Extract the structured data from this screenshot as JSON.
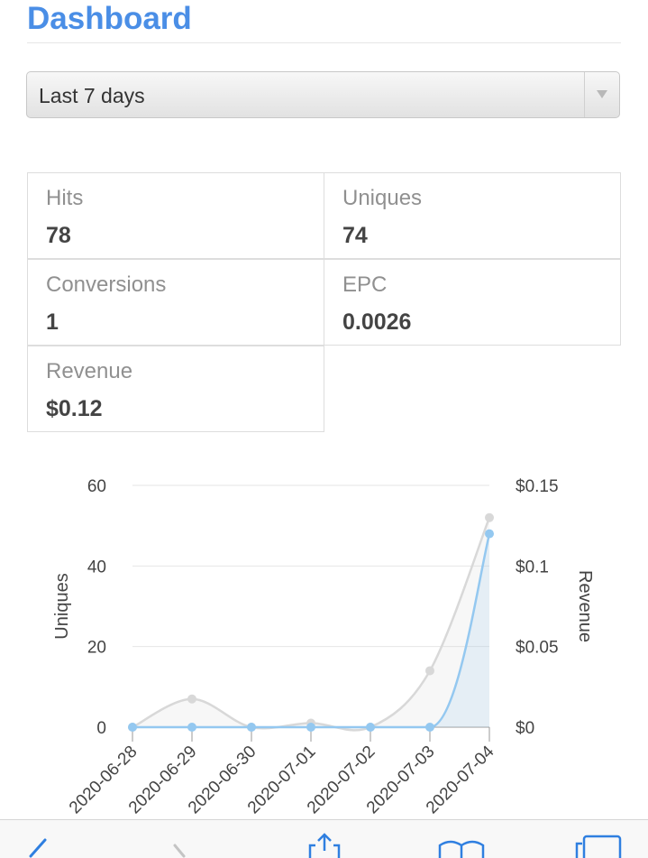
{
  "header": {
    "title": "Dashboard"
  },
  "range_select": {
    "value": "Last 7 days"
  },
  "stats": [
    {
      "label": "Hits",
      "value": "78"
    },
    {
      "label": "Uniques",
      "value": "74"
    },
    {
      "label": "Conversions",
      "value": "1"
    },
    {
      "label": "EPC",
      "value": "0.0026"
    },
    {
      "label": "Revenue",
      "value": "$0.12"
    }
  ],
  "colors": {
    "accent": "#4a8ee6",
    "uniques_line": "#d8d8d8",
    "revenue_line": "#94c8f0"
  },
  "chart_data": {
    "type": "line",
    "x": [
      "2020-06-28",
      "2020-06-29",
      "2020-06-30",
      "2020-07-01",
      "2020-07-02",
      "2020-07-03",
      "2020-07-04"
    ],
    "left_axis": {
      "label": "Uniques",
      "ticks": [
        "0",
        "20",
        "40",
        "60"
      ],
      "range": [
        0,
        60
      ]
    },
    "right_axis": {
      "label": "Revenue",
      "ticks": [
        "$0",
        "$0.05",
        "$0.1",
        "$0.15"
      ],
      "range": [
        0,
        0.15
      ]
    },
    "grid": true,
    "series": [
      {
        "axis": "left",
        "values": [
          0,
          7,
          0,
          1,
          0,
          14,
          52
        ]
      },
      {
        "axis": "right",
        "values": [
          0,
          0,
          0,
          0,
          0,
          0,
          0.12
        ]
      }
    ]
  },
  "bottom_bar": {
    "icons": [
      "back-icon",
      "forward-icon",
      "share-icon",
      "bookmarks-icon",
      "tabs-icon"
    ]
  }
}
